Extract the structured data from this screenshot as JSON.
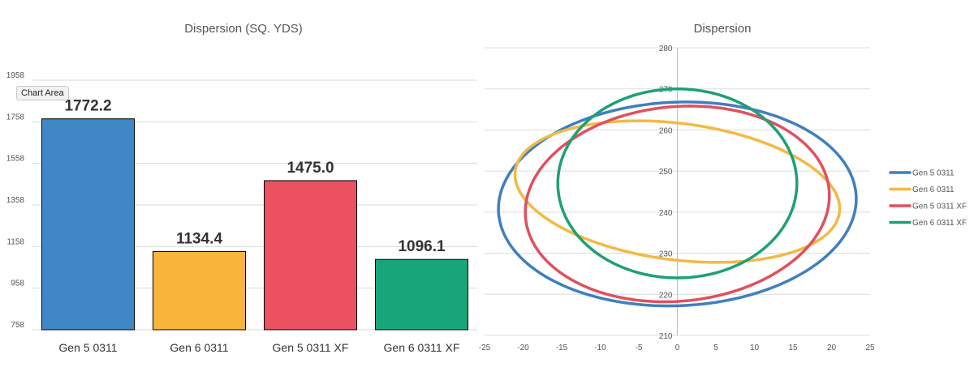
{
  "tooltip": "Chart Area",
  "chart_data": [
    {
      "type": "bar",
      "title": "Dispersion (SQ. YDS)",
      "categories": [
        "Gen 5 0311",
        "Gen 6 0311",
        "Gen 5 0311 XF",
        "Gen 6 0311 XF"
      ],
      "values": [
        1772.2,
        1134.4,
        1475.0,
        1096.1
      ],
      "data_labels": [
        "1772.2",
        "1134.4",
        "1475.0",
        "1096.1"
      ],
      "colors": [
        "#3f87c6",
        "#f8b53b",
        "#eb5161",
        "#17a67a"
      ],
      "ylim": [
        758,
        1958
      ],
      "yticks": [
        758,
        958,
        1158,
        1358,
        1558,
        1758,
        1958
      ],
      "grid": true,
      "legend": "none"
    },
    {
      "type": "line",
      "title": "Dispersion",
      "xlim": [
        -25,
        25
      ],
      "ylim": [
        210,
        280
      ],
      "xticks": [
        -25,
        -20,
        -15,
        -10,
        -5,
        0,
        5,
        10,
        15,
        20,
        25
      ],
      "yticks": [
        210,
        220,
        230,
        240,
        250,
        260,
        270,
        280
      ],
      "grid": true,
      "legend": "right",
      "series": [
        {
          "name": "Gen 5 0311",
          "color": "#3f7fbf",
          "cx": 0,
          "cy": 242,
          "rx": 23,
          "ry": 25,
          "rotation_deg": -18
        },
        {
          "name": "Gen 6 0311",
          "color": "#f2b945",
          "cx": 0,
          "cy": 245,
          "rx": 22,
          "ry": 16,
          "rotation_deg": -25
        },
        {
          "name": "Gen 5 0311 XF",
          "color": "#e0505e",
          "cx": 0,
          "cy": 242,
          "rx": 19.5,
          "ry": 24,
          "rotation_deg": -12
        },
        {
          "name": "Gen 6 0311 XF",
          "color": "#1ea073",
          "cx": 0,
          "cy": 247,
          "rx": 15.5,
          "ry": 23,
          "rotation_deg": 0
        }
      ]
    }
  ]
}
